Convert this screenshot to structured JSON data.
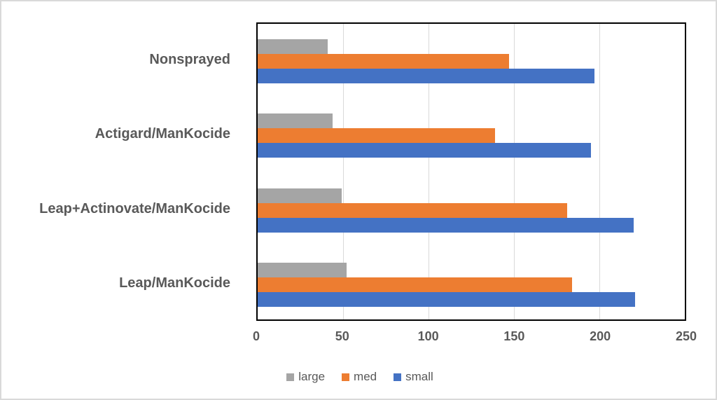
{
  "chart_data": {
    "type": "bar",
    "orientation": "horizontal",
    "title": "",
    "categories": [
      "Nonsprayed",
      "Actigard/ManKocide",
      "Leap+Actinovate/ManKocide",
      "Leap/ManKocide"
    ],
    "series": [
      {
        "name": "large",
        "color": "#A5A5A5",
        "values": [
          41,
          44,
          49,
          52
        ]
      },
      {
        "name": "med",
        "color": "#ED7D31",
        "values": [
          147,
          139,
          181,
          184
        ]
      },
      {
        "name": "small",
        "color": "#4472C4",
        "values": [
          197,
          195,
          220,
          221
        ]
      }
    ],
    "xlabel": "",
    "ylabel": "",
    "xlim": [
      0,
      250
    ],
    "x_ticks": [
      0,
      50,
      100,
      150,
      200,
      250
    ],
    "grid": true,
    "legend_position": "bottom",
    "legend_labels": [
      "large",
      "med",
      "small"
    ]
  },
  "colors": {
    "text": "#595959",
    "gridline": "#d9d9d9",
    "plot_border": "#000000",
    "frame_border": "#d9d9d9",
    "background": "#ffffff"
  }
}
